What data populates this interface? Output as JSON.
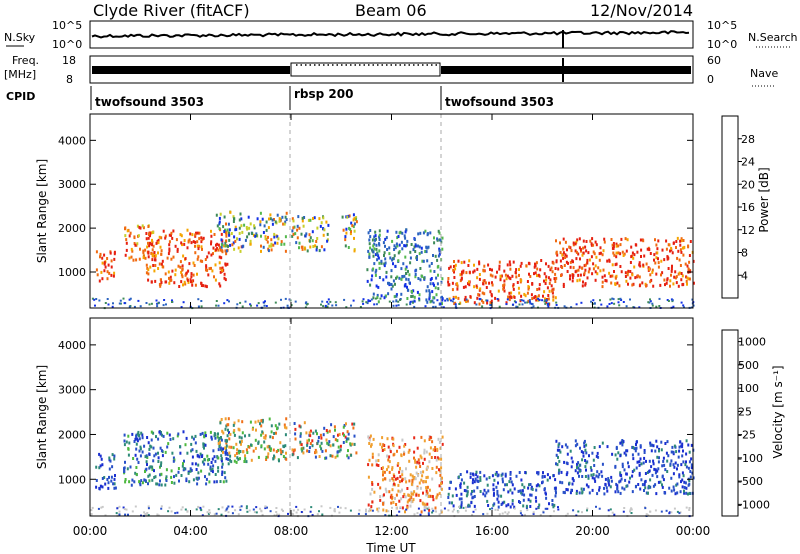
{
  "header": {
    "station": "Clyde River (fitACF)",
    "beam": "Beam 06",
    "date": "12/Nov/2014"
  },
  "noise_panel": {
    "left_label": "N.Sky",
    "left_ticks": [
      "10^5",
      "10^0"
    ],
    "right_ticks": [
      "10^5",
      "10^0"
    ],
    "right_label": "N.Search"
  },
  "freq_panel": {
    "left_label_1": "Freq.",
    "left_label_2": "[MHz]",
    "left_ticks": [
      "18",
      "8"
    ],
    "right_ticks": [
      "60",
      "0"
    ],
    "right_label": "Nave"
  },
  "cpid": {
    "label": "CPID",
    "segments": [
      {
        "name": "twofsound 3503",
        "start_hour": 0
      },
      {
        "name": "rbsp 200",
        "start_hour": 8
      },
      {
        "name": "twofsound 3503",
        "start_hour": 14
      }
    ]
  },
  "colors": {
    "power_scale": [
      "#1230e6",
      "#2a62c0",
      "#3e8a58",
      "#54b84e",
      "#c8cf2a",
      "#f5a500",
      "#f06a10",
      "#e62010"
    ],
    "velocity_scale": [
      "#1a2fd0",
      "#2850c8",
      "#2e8a78",
      "#4cb83e",
      "#c8c8c8",
      "#f0a030",
      "#f07018",
      "#e82818"
    ]
  },
  "chart_data": [
    {
      "type": "heatmap",
      "title": "",
      "ylabel": "Slant Range [km]",
      "xlabel": "",
      "xlim_hours": [
        0,
        24
      ],
      "ylim_km": [
        180,
        4600
      ],
      "x_ticks": [
        "00:00",
        "04:00",
        "08:00",
        "12:00",
        "16:00",
        "20:00",
        "00:00"
      ],
      "y_ticks": [
        1000,
        2000,
        3000,
        4000
      ],
      "colorbar": {
        "label": "Power [dB]",
        "ticks": [
          "28",
          "24",
          "20",
          "16",
          "12",
          "8",
          "4"
        ]
      },
      "scatter_regions_approx": [
        {
          "hours": [
            0.2,
            1.0
          ],
          "range_km": [
            800,
            1500
          ],
          "level": "red"
        },
        {
          "hours": [
            1.3,
            2.5
          ],
          "range_km": [
            1300,
            2100
          ],
          "level": "orange"
        },
        {
          "hours": [
            2.2,
            5.5
          ],
          "range_km": [
            700,
            2000
          ],
          "level": "red"
        },
        {
          "hours": [
            5.0,
            7.8
          ],
          "range_km": [
            1500,
            2400
          ],
          "level": "mixed"
        },
        {
          "hours": [
            8.0,
            9.5
          ],
          "range_km": [
            1500,
            2300
          ],
          "level": "mixed"
        },
        {
          "hours": [
            10.0,
            10.6
          ],
          "range_km": [
            1500,
            2400
          ],
          "level": "mixed"
        },
        {
          "hours": [
            11.0,
            14.0
          ],
          "range_km": [
            300,
            2000
          ],
          "level": "low"
        },
        {
          "hours": [
            14.2,
            18.5
          ],
          "range_km": [
            300,
            1300
          ],
          "level": "red"
        },
        {
          "hours": [
            18.5,
            24.0
          ],
          "range_km": [
            700,
            1800
          ],
          "level": "red"
        }
      ]
    },
    {
      "type": "heatmap",
      "title": "",
      "ylabel": "Slant Range [km]",
      "xlabel": "Time UT",
      "xlim_hours": [
        0,
        24
      ],
      "ylim_km": [
        180,
        4600
      ],
      "x_ticks": [
        "00:00",
        "04:00",
        "08:00",
        "12:00",
        "16:00",
        "20:00",
        "00:00"
      ],
      "y_ticks": [
        1000,
        2000,
        3000,
        4000
      ],
      "colorbar": {
        "label": "Velocity [m s⁻¹]",
        "ticks": [
          "1000",
          "500",
          "100",
          "25",
          "-25",
          "-100",
          "-500",
          "-1000"
        ]
      },
      "scatter_regions_approx": [
        {
          "hours": [
            0.2,
            1.0
          ],
          "range_km": [
            800,
            1600
          ],
          "level": "blue"
        },
        {
          "hours": [
            1.3,
            5.5
          ],
          "range_km": [
            900,
            2100
          ],
          "level": "blue-green"
        },
        {
          "hours": [
            5.0,
            7.8
          ],
          "range_km": [
            1400,
            2400
          ],
          "level": "green-orange"
        },
        {
          "hours": [
            8.0,
            10.6
          ],
          "range_km": [
            1500,
            2300
          ],
          "level": "mixed"
        },
        {
          "hours": [
            11.0,
            14.0
          ],
          "range_km": [
            300,
            2000
          ],
          "level": "orange"
        },
        {
          "hours": [
            14.2,
            18.5
          ],
          "range_km": [
            400,
            1200
          ],
          "level": "blue"
        },
        {
          "hours": [
            18.5,
            24.0
          ],
          "range_km": [
            700,
            1900
          ],
          "level": "blue"
        }
      ]
    }
  ]
}
